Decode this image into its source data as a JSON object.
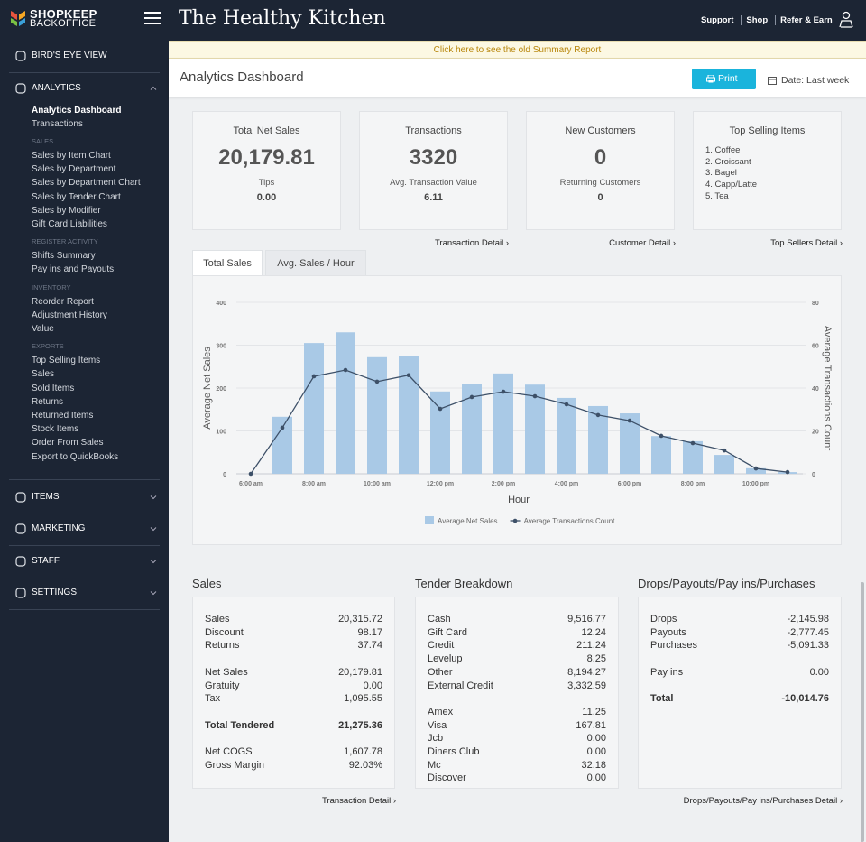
{
  "sidebar": {
    "brand": "SHOPKEEP",
    "brand_sub": "BACKOFFICE",
    "menu": [
      {
        "label": "BIRD'S EYE VIEW"
      },
      {
        "label": "ANALYTICS",
        "groups": [
          {
            "items": [
              "Analytics Dashboard",
              "Transactions"
            ]
          },
          {
            "heading": "SALES",
            "items": [
              "Sales by Item Chart",
              "Sales by Department",
              "Sales by Department Chart",
              "Sales by Tender Chart",
              "Sales by Modifier",
              "Gift Card Liabilities"
            ]
          },
          {
            "heading": "REGISTER ACTIVITY",
            "items": [
              "Shifts Summary",
              "Pay ins and Payouts"
            ]
          },
          {
            "heading": "INVENTORY",
            "items": [
              "Reorder Report",
              "Adjustment History",
              "Value"
            ]
          },
          {
            "heading": "EXPORTS",
            "items": [
              "Top Selling Items",
              "Sales",
              "Sold Items",
              "Returns",
              "Returned Items",
              "Stock Items",
              "Order From Sales",
              "Export to QuickBooks"
            ]
          }
        ]
      },
      {
        "label": "ITEMS"
      },
      {
        "label": "MARKETING"
      },
      {
        "label": "STAFF"
      },
      {
        "label": "SETTINGS"
      }
    ]
  },
  "header": {
    "title": "The Healthy Kitchen",
    "links": [
      "Support",
      "Shop",
      "Refer & Earn"
    ]
  },
  "banner": "Click here to see the old Summary Report",
  "page": {
    "title": "Analytics Dashboard",
    "print": "Print",
    "date": "Date: Last week"
  },
  "cards": [
    {
      "title": "Total Net Sales",
      "value": "20,179.81",
      "sub_label": "Tips",
      "sub_value": "0.00"
    },
    {
      "title": "Transactions",
      "value": "3320",
      "sub_label": "Avg. Transaction Value",
      "sub_value": "6.11",
      "link": "Transaction Detail ›"
    },
    {
      "title": "New Customers",
      "value": "0",
      "sub_label": "Returning Customers",
      "sub_value": "0",
      "link": "Customer Detail ›"
    },
    {
      "title": "Top Selling Items",
      "list": [
        "1. Coffee",
        "2. Croissant",
        "3. Bagel",
        "4. Capp/Latte",
        "5. Tea"
      ],
      "link": "Top Sellers Detail ›"
    }
  ],
  "tabs": [
    "Total Sales",
    "Avg. Sales / Hour"
  ],
  "chart_data": {
    "type": "bar",
    "x_label": "Hour",
    "y_label": "Average Net Sales",
    "y2_label": "Average Transactions Count",
    "categories": [
      "6:00 am",
      null,
      "8:00 am",
      null,
      "10:00 am",
      null,
      "12:00 pm",
      null,
      "2:00 pm",
      null,
      "4:00 pm",
      null,
      "6:00 pm",
      null,
      "8:00 pm",
      null,
      "10:00 pm",
      null
    ],
    "series": [
      {
        "name": "Average Net Sales",
        "type": "bar",
        "color": "#a9c9e6",
        "values": [
          0,
          133,
          305,
          330,
          272,
          274,
          192,
          210,
          234,
          208,
          177,
          158,
          141,
          88,
          76,
          44,
          13,
          4
        ]
      },
      {
        "name": "Average Transactions Count",
        "type": "line",
        "axis": "y2",
        "color": "#3d5068",
        "values": [
          0,
          21.5,
          45.5,
          48.4,
          43,
          46,
          30.3,
          35.8,
          38.3,
          36.2,
          32.4,
          27.4,
          24.8,
          17.7,
          14.3,
          10.9,
          2.5,
          0.8
        ]
      }
    ],
    "ylim": [
      0,
      400
    ],
    "yticks": [
      0,
      100,
      200,
      300,
      400
    ],
    "y2lim": [
      0,
      80
    ],
    "y2ticks": [
      0,
      20,
      40,
      60,
      80
    ],
    "grid": true,
    "legend": "bottom"
  },
  "tables": [
    {
      "title": "Sales",
      "groups": [
        {
          "rows": [
            [
              "Sales",
              "20,315.72"
            ],
            [
              "Discount",
              "98.17"
            ],
            [
              "Returns",
              "37.74"
            ]
          ]
        },
        {
          "rows": [
            [
              "Net Sales",
              "20,179.81"
            ],
            [
              "Gratuity",
              "0.00"
            ],
            [
              "Tax",
              "1,095.55"
            ]
          ]
        },
        {
          "rows": [
            [
              "Total Tendered",
              "21,275.36"
            ]
          ],
          "bold": true
        },
        {
          "rows": [
            [
              "Net COGS",
              "1,607.78"
            ],
            [
              "Gross Margin",
              "92.03%"
            ]
          ]
        }
      ],
      "link": "Transaction Detail ›"
    },
    {
      "title": "Tender Breakdown",
      "groups": [
        {
          "rows": [
            [
              "Cash",
              "9,516.77"
            ],
            [
              "Gift Card",
              "12.24"
            ],
            [
              "Credit",
              "211.24"
            ],
            [
              "Levelup",
              "8.25"
            ],
            [
              "Other",
              "8,194.27"
            ],
            [
              "External Credit",
              "3,332.59"
            ]
          ]
        },
        {
          "rows": [
            [
              "Amex",
              "11.25"
            ],
            [
              "Visa",
              "167.81"
            ],
            [
              "Jcb",
              "0.00"
            ],
            [
              "Diners Club",
              "0.00"
            ],
            [
              "Mc",
              "32.18"
            ],
            [
              "Discover",
              "0.00"
            ]
          ]
        }
      ]
    },
    {
      "title": "Drops/Payouts/Pay ins/Purchases",
      "groups": [
        {
          "rows": [
            [
              "Drops",
              "-2,145.98"
            ],
            [
              "Payouts",
              "-2,777.45"
            ],
            [
              "Purchases",
              "-5,091.33"
            ]
          ]
        },
        {
          "rows": [
            [
              "Pay ins",
              "0.00"
            ]
          ]
        },
        {
          "rows": [
            [
              "Total",
              "-10,014.76"
            ]
          ],
          "bold": true
        }
      ],
      "link": "Drops/Payouts/Pay ins/Purchases Detail ›"
    }
  ]
}
